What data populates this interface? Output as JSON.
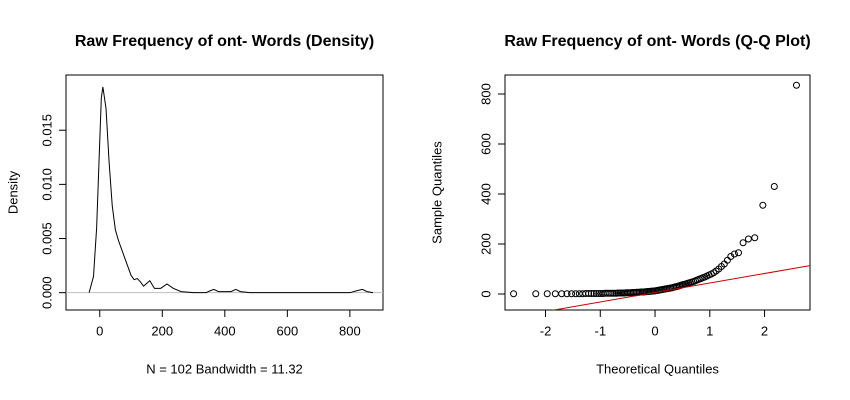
{
  "chart_data": [
    {
      "type": "line",
      "title": "Raw Frequency of ont- Words (Density)",
      "xlabel": "N = 102   Bandwidth = 11.32",
      "ylabel": "Density",
      "color": "#000000",
      "x": [
        -34,
        -20,
        -10,
        0,
        5,
        10,
        20,
        30,
        40,
        50,
        60,
        70,
        80,
        90,
        100,
        110,
        120,
        130,
        140,
        160,
        175,
        195,
        215,
        235,
        260,
        300,
        340,
        355,
        365,
        380,
        420,
        435,
        450,
        480,
        800,
        825,
        840,
        855,
        874
      ],
      "values": [
        0,
        0.0015,
        0.006,
        0.014,
        0.018,
        0.019,
        0.017,
        0.012,
        0.008,
        0.0058,
        0.0048,
        0.004,
        0.0032,
        0.0024,
        0.0016,
        0.0012,
        0.0013,
        0.001,
        0.0006,
        0.0011,
        0.0004,
        0.0004,
        0.0008,
        0.0004,
        0.0001,
        0,
        0,
        0.0002,
        0.0003,
        0.0001,
        0.0001,
        0.0003,
        0.0001,
        0,
        0,
        0.0002,
        0.0003,
        0.0001,
        0
      ],
      "xlim": [
        -108,
        906
      ],
      "ylim": [
        -0.0016,
        0.0201
      ],
      "xticks": [
        0,
        200,
        400,
        600,
        800
      ],
      "yticks": [
        {
          "value": 0,
          "label": "0.000"
        },
        {
          "value": 0.005,
          "label": "0.005"
        },
        {
          "value": 0.01,
          "label": "0.010"
        },
        {
          "value": 0.015,
          "label": "0.015"
        }
      ],
      "zero_line_color": "#bebebe"
    },
    {
      "type": "scatter",
      "title": "Raw Frequency of ont- Words (Q-Q Plot)",
      "xlabel": "Theoretical Quantiles",
      "ylabel": "Sample Quantiles",
      "color": "#000000",
      "x": [
        -2.583,
        -2.178,
        -1.969,
        -1.821,
        -1.705,
        -1.608,
        -1.524,
        -1.45,
        -1.383,
        -1.322,
        -1.265,
        -1.212,
        -1.163,
        -1.115,
        -1.071,
        -1.028,
        -0.987,
        -0.948,
        -0.91,
        -0.873,
        -0.838,
        -0.803,
        -0.77,
        -0.737,
        -0.706,
        -0.674,
        -0.644,
        -0.614,
        -0.585,
        -0.556,
        -0.527,
        -0.499,
        -0.472,
        -0.445,
        -0.418,
        -0.391,
        -0.365,
        -0.338,
        -0.312,
        -0.287,
        -0.261,
        -0.236,
        -0.21,
        -0.185,
        -0.16,
        -0.135,
        -0.111,
        -0.086,
        -0.061,
        -0.037,
        -0.012,
        0.012,
        0.037,
        0.061,
        0.086,
        0.111,
        0.135,
        0.16,
        0.185,
        0.21,
        0.236,
        0.261,
        0.287,
        0.312,
        0.338,
        0.365,
        0.391,
        0.418,
        0.445,
        0.472,
        0.499,
        0.527,
        0.556,
        0.585,
        0.614,
        0.644,
        0.674,
        0.706,
        0.737,
        0.77,
        0.803,
        0.838,
        0.873,
        0.91,
        0.948,
        0.987,
        1.028,
        1.071,
        1.115,
        1.163,
        1.212,
        1.265,
        1.322,
        1.383,
        1.45,
        1.524,
        1.608,
        1.705,
        1.821,
        1.969,
        2.178,
        2.583
      ],
      "values": [
        1,
        1,
        1,
        1,
        1,
        1,
        1,
        1,
        1,
        1,
        2,
        2,
        2,
        2,
        2,
        2,
        2,
        2,
        3,
        3,
        3,
        3,
        3,
        3,
        3,
        4,
        4,
        4,
        4,
        4,
        5,
        5,
        5,
        5,
        6,
        6,
        6,
        7,
        7,
        7,
        8,
        8,
        8,
        9,
        9,
        10,
        10,
        11,
        11,
        12,
        12,
        13,
        14,
        15,
        16,
        17,
        18,
        19,
        20,
        21,
        22,
        23,
        24,
        25,
        27,
        28,
        30,
        31,
        33,
        35,
        37,
        38,
        40,
        42,
        44,
        46,
        48,
        50,
        53,
        56,
        59,
        62,
        65,
        68,
        72,
        76,
        80,
        85,
        92,
        100,
        110,
        120,
        135,
        150,
        160,
        165,
        205,
        220,
        225,
        355,
        430,
        835
      ],
      "xlim": [
        -2.74,
        2.83
      ],
      "ylim": [
        -64,
        876
      ],
      "xticks": [
        -2,
        -1,
        0,
        1,
        2
      ],
      "yticks": [
        0,
        200,
        400,
        600,
        800
      ],
      "qqline": {
        "intercept": 6,
        "slope": 38,
        "color": "#cc0000"
      }
    }
  ]
}
